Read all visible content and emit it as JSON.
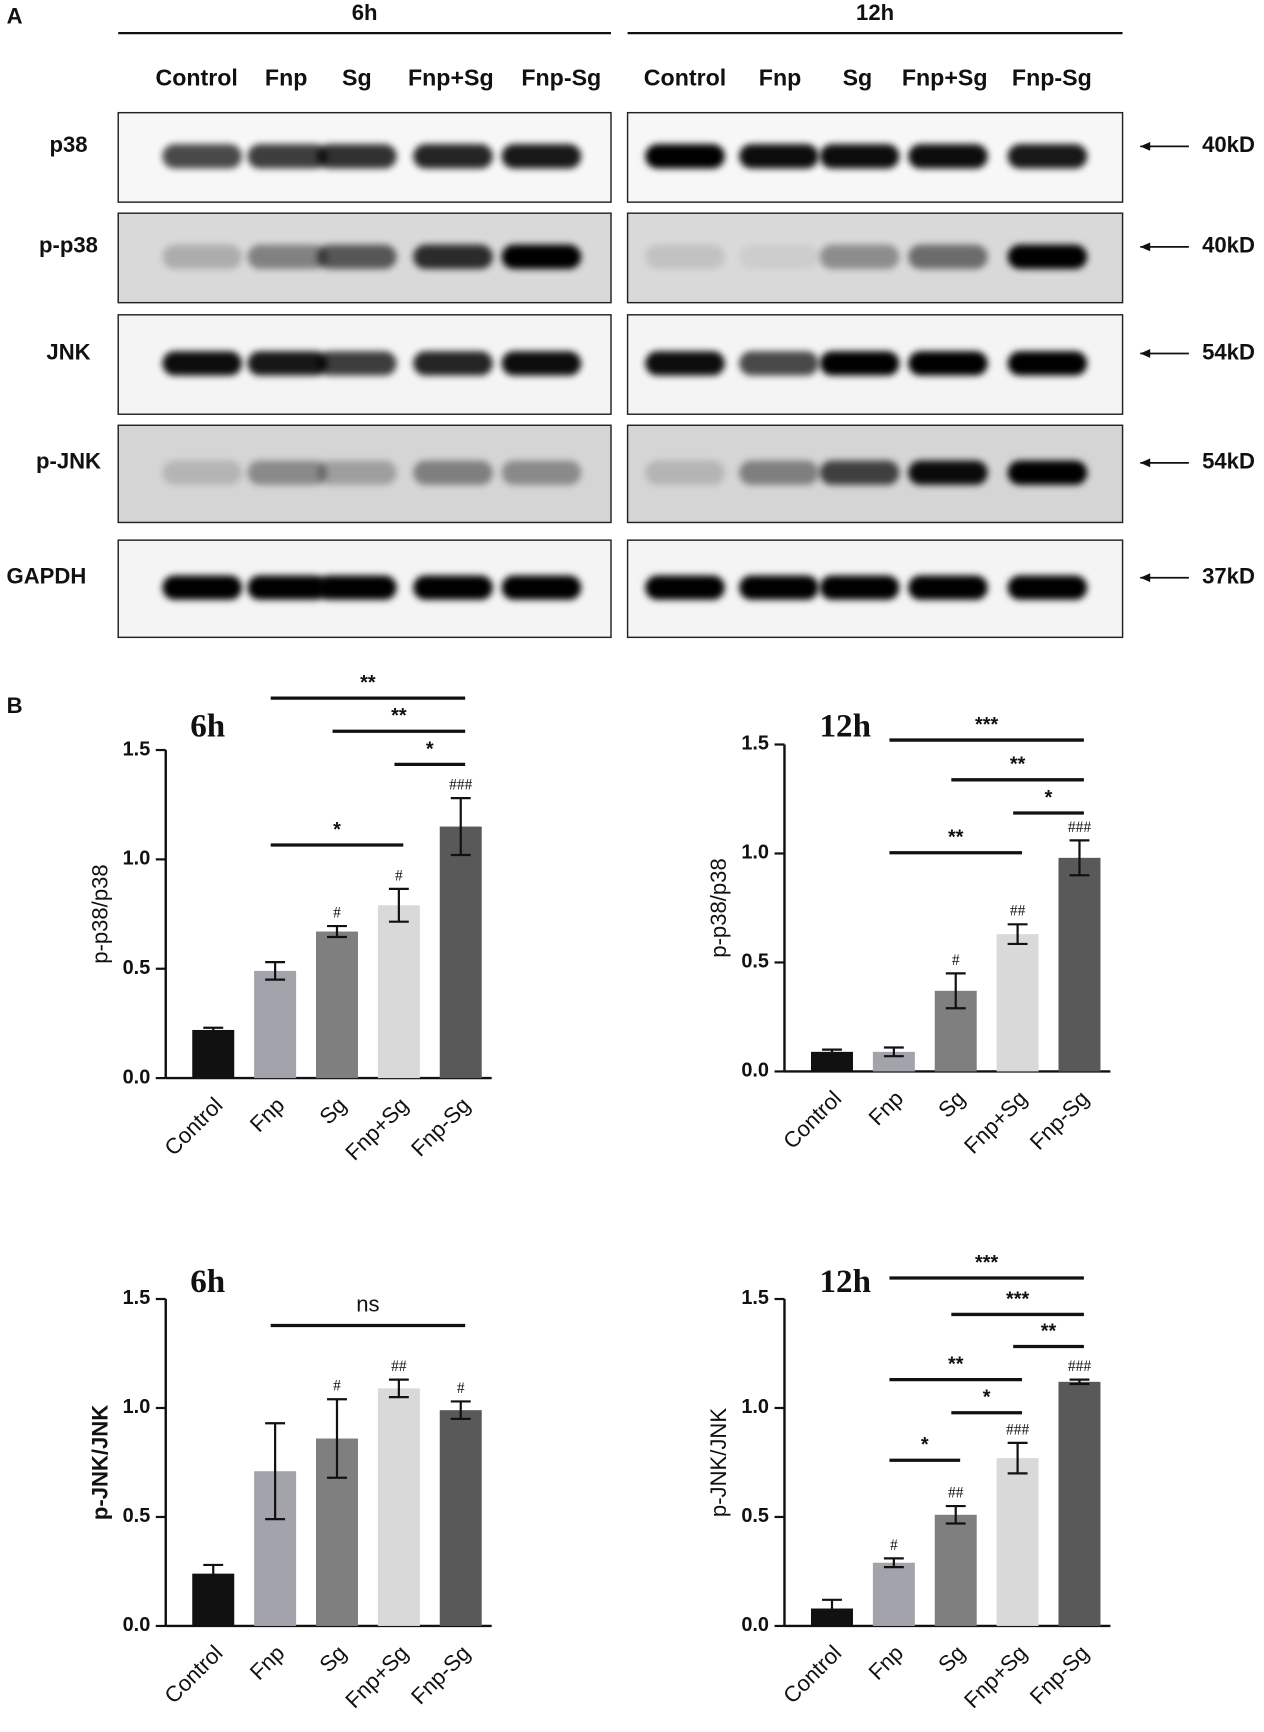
{
  "panel_a": {
    "label": "A",
    "groups": [
      {
        "title": "6h",
        "lanes": [
          "Control",
          "Fnp",
          "Sg",
          "Fnp+Sg",
          "Fnp-Sg"
        ]
      },
      {
        "title": "12h",
        "lanes": [
          "Control",
          "Fnp",
          "Sg",
          "Fnp+Sg",
          "Fnp-Sg"
        ]
      }
    ],
    "rows": [
      {
        "protein": "p38",
        "size": "40kD"
      },
      {
        "protein": "p-p38",
        "size": "40kD"
      },
      {
        "protein": "JNK",
        "size": "54kD"
      },
      {
        "protein": "p-JNK",
        "size": "54kD"
      },
      {
        "protein": "GAPDH",
        "size": "37kD"
      }
    ]
  },
  "panel_b_label": "B",
  "chart_data": [
    {
      "type": "bar",
      "title": "6h",
      "y_label": "p-p38/p38",
      "categories": [
        "Control",
        "Fnp",
        "Sg",
        "Fnp+Sg",
        "Fnp-Sg"
      ],
      "values": [
        0.22,
        0.49,
        0.67,
        0.79,
        1.15
      ],
      "errors": [
        0.01,
        0.04,
        0.025,
        0.075,
        0.13
      ],
      "colors": [
        "#111111",
        "#a3a3ab",
        "#7f7f7f",
        "#d9d9d9",
        "#595959"
      ],
      "ylim": [
        0,
        1.5
      ],
      "yticks": [
        {
          "value": 0,
          "label": "0.0"
        },
        0.5,
        {
          "value": 1,
          "label": "1.0"
        },
        1.5
      ],
      "hash_labels": [
        {
          "index": 2,
          "text": "#"
        },
        {
          "index": 3,
          "text": "#"
        },
        {
          "index": 4,
          "text": "###"
        }
      ],
      "comparisons": [
        {
          "from": 1,
          "to": 4,
          "label": "**"
        },
        {
          "from": 2,
          "to": 4,
          "label": "**"
        },
        {
          "from": 3,
          "to": 4,
          "label": "*"
        },
        {
          "from": 1,
          "to": 3,
          "label": "*"
        }
      ]
    },
    {
      "type": "bar",
      "title": "12h",
      "y_label": "p-p38/p38",
      "categories": [
        "Control",
        "Fnp",
        "Sg",
        "Fnp+Sg",
        "Fnp-Sg"
      ],
      "values": [
        0.09,
        0.09,
        0.37,
        0.63,
        0.98
      ],
      "errors": [
        0.01,
        0.02,
        0.08,
        0.045,
        0.08
      ],
      "colors": [
        "#111111",
        "#a3a3ab",
        "#7f7f7f",
        "#d9d9d9",
        "#595959"
      ],
      "ylim": [
        0,
        1.5
      ],
      "yticks": [
        {
          "value": 0,
          "label": "0.0"
        },
        0.5,
        {
          "value": 1,
          "label": "1.0"
        },
        1.5
      ],
      "hash_labels": [
        {
          "index": 2,
          "text": "#"
        },
        {
          "index": 3,
          "text": "##"
        },
        {
          "index": 4,
          "text": "###"
        }
      ],
      "comparisons": [
        {
          "from": 1,
          "to": 4,
          "label": "***"
        },
        {
          "from": 2,
          "to": 4,
          "label": "**"
        },
        {
          "from": 3,
          "to": 4,
          "label": "*"
        },
        {
          "from": 1,
          "to": 3,
          "label": "**"
        }
      ]
    },
    {
      "type": "bar",
      "title": "6h",
      "y_label": "p-JNK/JNK",
      "categories": [
        "Control",
        "Fnp",
        "Sg",
        "Fnp+Sg",
        "Fnp-Sg"
      ],
      "values": [
        0.24,
        0.71,
        0.86,
        1.09,
        0.99
      ],
      "errors": [
        0.04,
        0.22,
        0.18,
        0.04,
        0.04
      ],
      "colors": [
        "#111111",
        "#a3a3ab",
        "#7f7f7f",
        "#d9d9d9",
        "#595959"
      ],
      "ylim": [
        0,
        1.5
      ],
      "yticks": [
        {
          "value": 0,
          "label": "0.0"
        },
        0.5,
        {
          "value": 1,
          "label": "1.0"
        },
        1.5
      ],
      "hash_labels": [
        {
          "index": 2,
          "text": "#"
        },
        {
          "index": 3,
          "text": "##"
        },
        {
          "index": 4,
          "text": "#"
        }
      ],
      "comparisons": [
        {
          "from": 1,
          "to": 4,
          "label": "ns"
        }
      ]
    },
    {
      "type": "bar",
      "title": "12h",
      "y_label": "p-JNK/JNK",
      "categories": [
        "Control",
        "Fnp",
        "Sg",
        "Fnp+Sg",
        "Fnp-Sg"
      ],
      "values": [
        0.08,
        0.29,
        0.51,
        0.77,
        1.12
      ],
      "errors": [
        0.04,
        0.02,
        0.04,
        0.07,
        0.01
      ],
      "colors": [
        "#111111",
        "#a3a3ab",
        "#7f7f7f",
        "#d9d9d9",
        "#595959"
      ],
      "ylim": [
        0,
        1.5
      ],
      "yticks": [
        {
          "value": 0,
          "label": "0.0"
        },
        0.5,
        {
          "value": 1,
          "label": "1.0"
        },
        1.5
      ],
      "hash_labels": [
        {
          "index": 1,
          "text": "#"
        },
        {
          "index": 2,
          "text": "##"
        },
        {
          "index": 3,
          "text": "###"
        },
        {
          "index": 4,
          "text": "###"
        }
      ],
      "comparisons": [
        {
          "from": 1,
          "to": 4,
          "label": "***"
        },
        {
          "from": 2,
          "to": 4,
          "label": "***"
        },
        {
          "from": 3,
          "to": 4,
          "label": "**"
        },
        {
          "from": 1,
          "to": 3,
          "label": "**"
        },
        {
          "from": 2,
          "to": 3,
          "label": "*"
        },
        {
          "from": 1,
          "to": 2,
          "label": "*"
        }
      ]
    }
  ]
}
